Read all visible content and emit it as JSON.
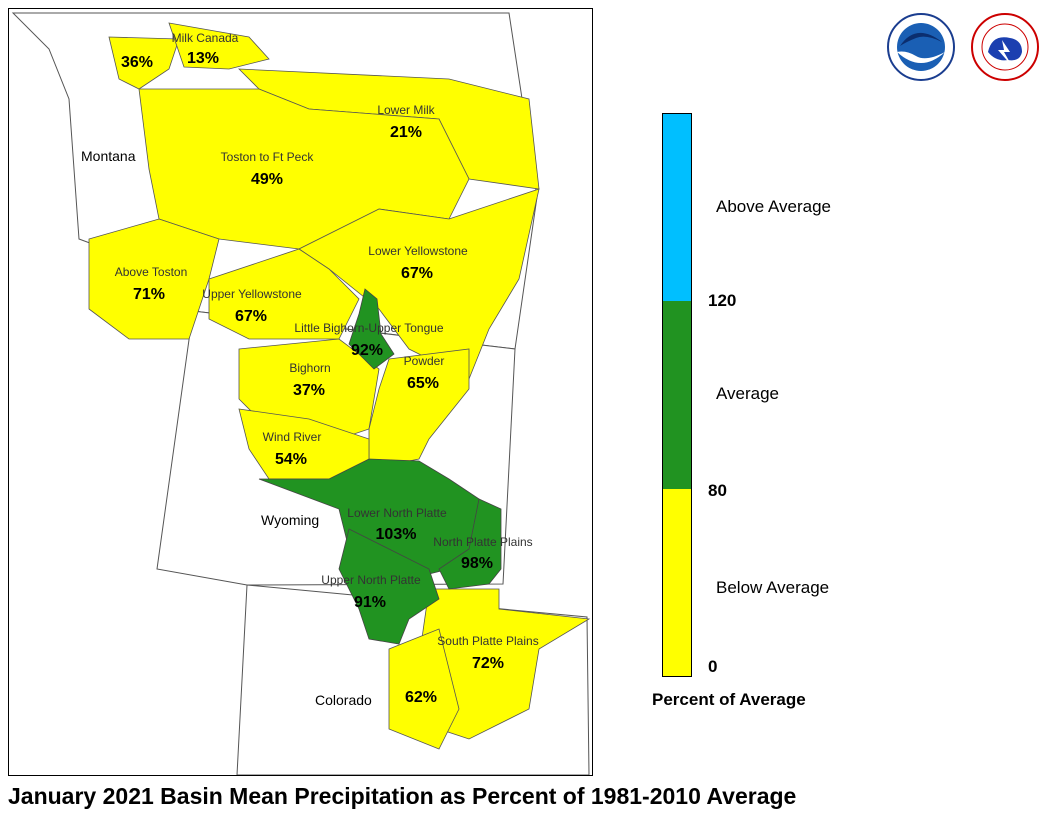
{
  "title": "January 2021 Basin Mean Precipitation as Percent of 1981-2010 Average",
  "states": [
    "Montana",
    "Wyoming",
    "Colorado"
  ],
  "basins": [
    {
      "name": "Milk Canada",
      "value": "13%",
      "category": "below"
    },
    {
      "name": "",
      "value": "36%",
      "category": "below"
    },
    {
      "name": "Lower Milk",
      "value": "21%",
      "category": "below"
    },
    {
      "name": "Toston to Ft Peck",
      "value": "49%",
      "category": "below"
    },
    {
      "name": "Above Toston",
      "value": "71%",
      "category": "below"
    },
    {
      "name": "Lower Yellowstone",
      "value": "67%",
      "category": "below"
    },
    {
      "name": "Upper Yellowstone",
      "value": "67%",
      "category": "below"
    },
    {
      "name": "Little Bighorn-Upper Tongue",
      "value": "92%",
      "category": "average"
    },
    {
      "name": "Bighorn",
      "value": "37%",
      "category": "below"
    },
    {
      "name": "Powder",
      "value": "65%",
      "category": "below"
    },
    {
      "name": "Wind River",
      "value": "54%",
      "category": "below"
    },
    {
      "name": "Lower North Platte",
      "value": "103%",
      "category": "average"
    },
    {
      "name": "North Platte Plains",
      "value": "98%",
      "category": "average"
    },
    {
      "name": "Upper North Platte",
      "value": "91%",
      "category": "average"
    },
    {
      "name": "South Platte Plains",
      "value": "72%",
      "category": "below"
    },
    {
      "name": "",
      "value": "62%",
      "category": "below"
    }
  ],
  "legend": {
    "title": "Percent of Average",
    "categories": [
      {
        "label": "Above Average",
        "color": "#00bfff"
      },
      {
        "label": "Average",
        "color": "#219321"
      },
      {
        "label": "Below Average",
        "color": "#ffff00"
      }
    ],
    "ticks": [
      "120",
      "80",
      "0"
    ]
  },
  "logos": [
    "noaa-logo",
    "national-weather-service-logo"
  ]
}
